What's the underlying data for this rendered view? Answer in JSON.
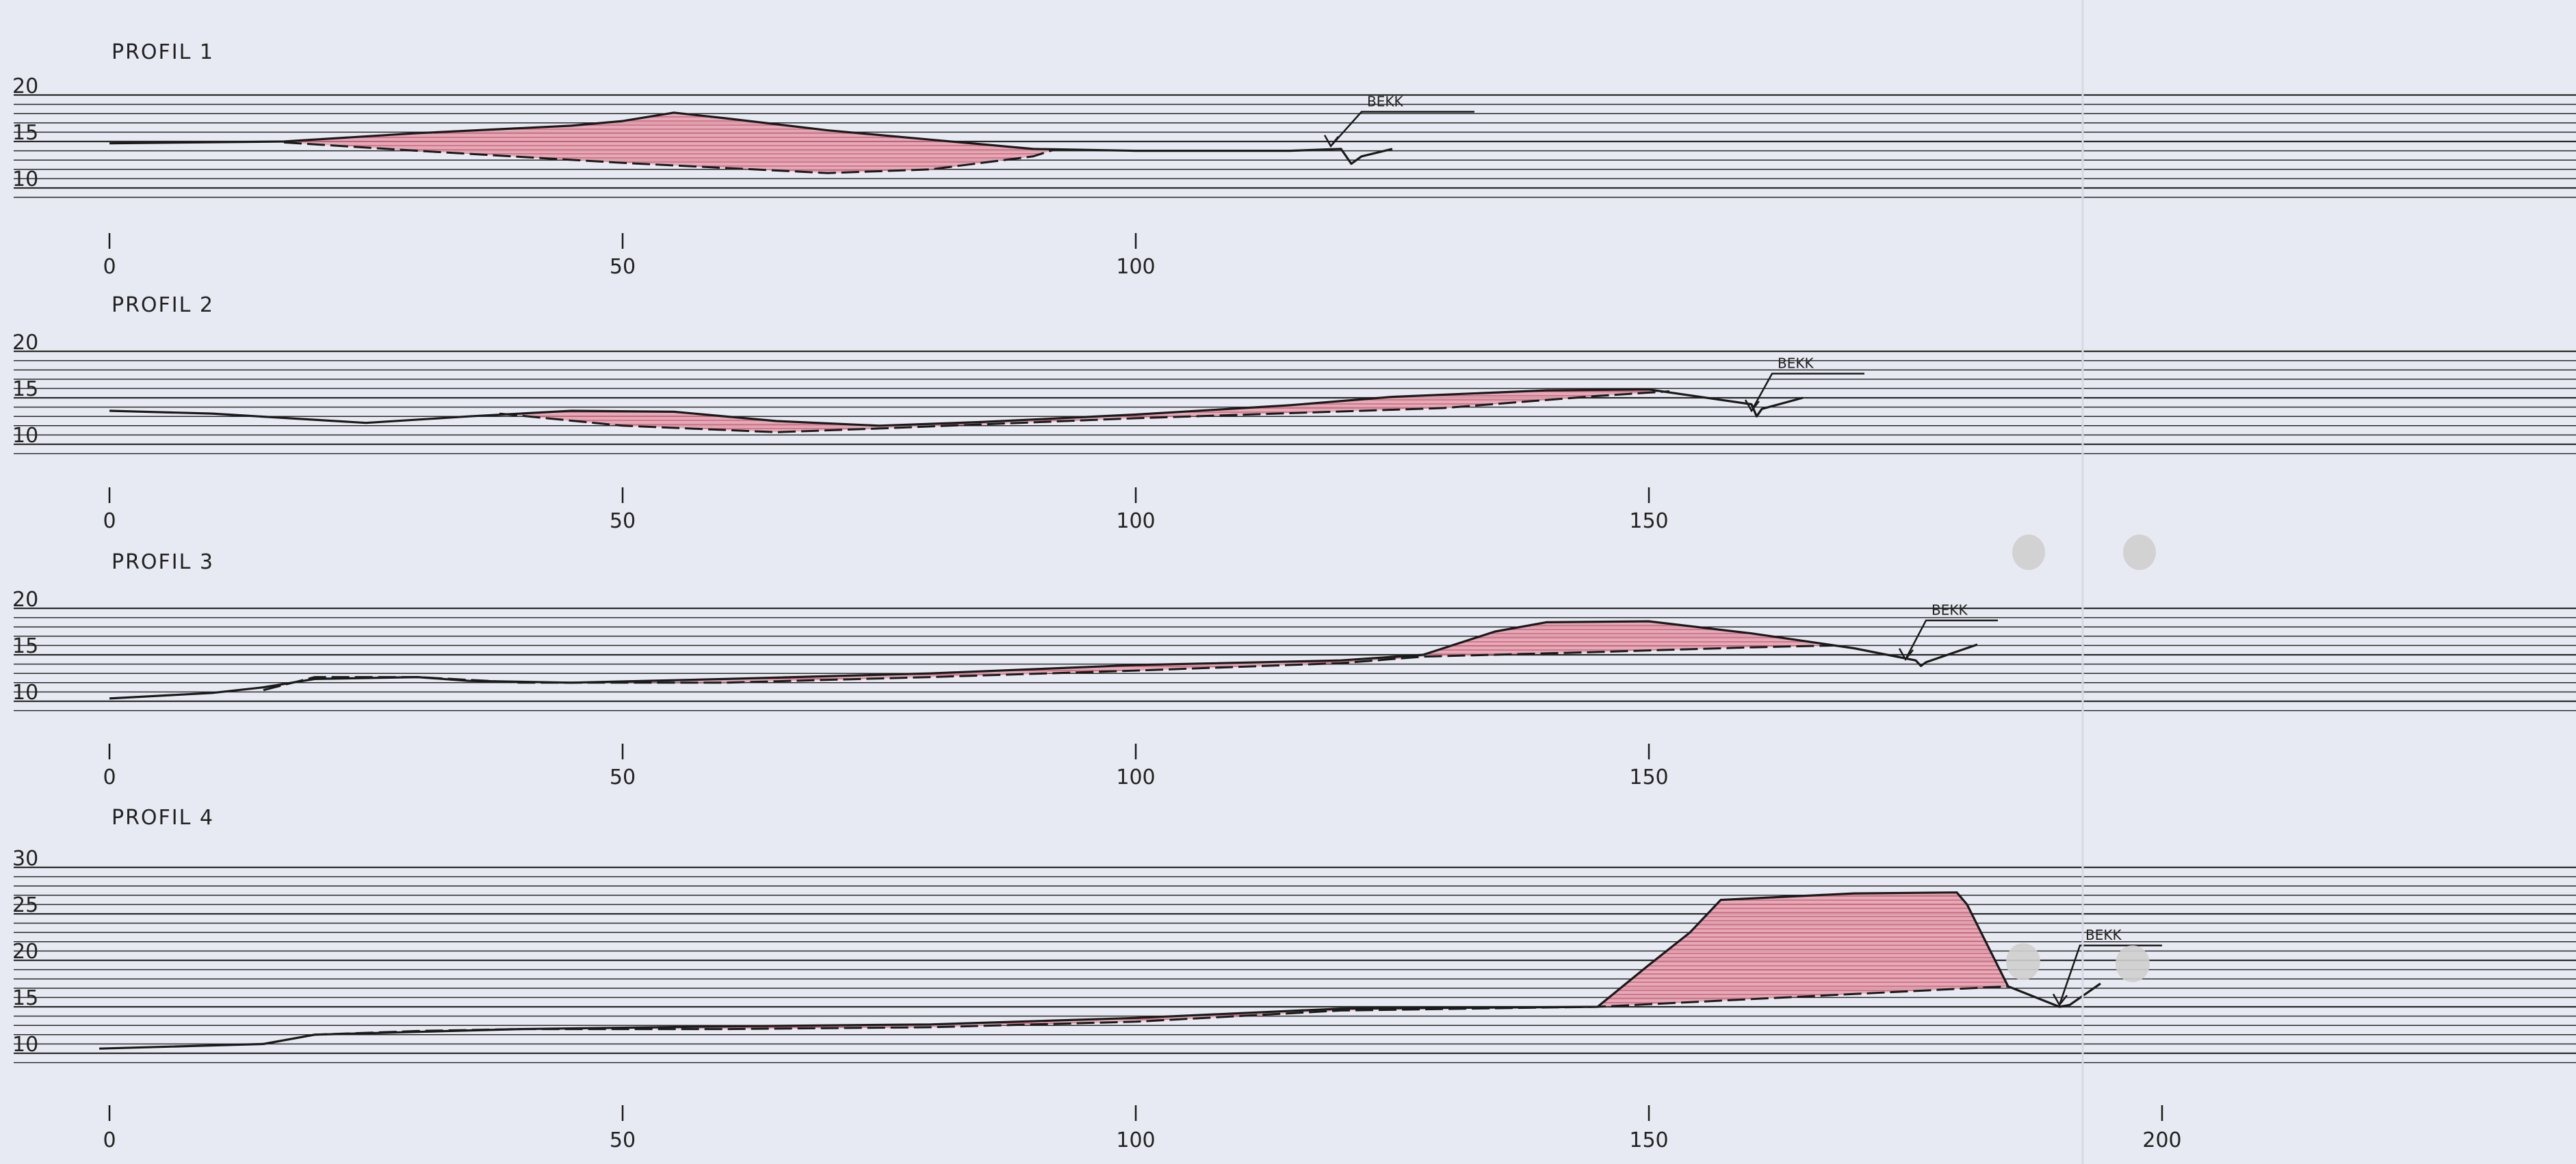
{
  "colors": {
    "paper": "#e8eaf3",
    "grid": "#2a2a2a",
    "terrain": "#1a1a1a",
    "fill_cut": "#e2a3b2",
    "fill_cut_hatch": "#d0506a",
    "fill_blue": "#8fb6e6",
    "fill_blue_hatch": "#4f86d6"
  },
  "chart_data": [
    {
      "type": "area",
      "title": "PROFIL 1",
      "x_ticks": [
        "0",
        "50",
        "100"
      ],
      "x_tick_values": [
        0,
        50,
        100
      ],
      "y_ticks": [
        "20",
        "15",
        "10"
      ],
      "y_tick_values": [
        20,
        15,
        10
      ],
      "ylim": [
        9,
        20
      ],
      "grid": true,
      "annotation": "BEKK",
      "terrain": [
        [
          0,
          14.8
        ],
        [
          17,
          15.0
        ],
        [
          30,
          15.9
        ],
        [
          45,
          16.7
        ],
        [
          50,
          17.2
        ],
        [
          55,
          18.1
        ],
        [
          60,
          17.5
        ],
        [
          70,
          16.2
        ],
        [
          80,
          15.2
        ],
        [
          90,
          14.2
        ],
        [
          100,
          14.0
        ],
        [
          115,
          14.0
        ],
        [
          120,
          14.2
        ],
        [
          121,
          12.6
        ],
        [
          122,
          13.4
        ],
        [
          125,
          14.2
        ]
      ],
      "base": [
        [
          17,
          14.9
        ],
        [
          30,
          14.0
        ],
        [
          50,
          12.7
        ],
        [
          70,
          11.6
        ],
        [
          80,
          12.0
        ],
        [
          90,
          13.4
        ],
        [
          92,
          14.1
        ]
      ],
      "red_regions": [
        [
          17,
          92
        ]
      ],
      "blue_regions": [],
      "bekk_line": [
        [
          119,
          14.5
        ],
        [
          122,
          18.2
        ],
        [
          133,
          18.2
        ]
      ]
    },
    {
      "type": "area",
      "title": "PROFIL 2",
      "x_ticks": [
        "0",
        "50",
        "100",
        "150"
      ],
      "x_tick_values": [
        0,
        50,
        100,
        150
      ],
      "y_ticks": [
        "20",
        "15",
        "10"
      ],
      "y_tick_values": [
        20,
        15,
        10
      ],
      "ylim": [
        9,
        20
      ],
      "grid": true,
      "annotation": "BEKK",
      "terrain": [
        [
          0,
          13.6
        ],
        [
          10,
          13.3
        ],
        [
          25,
          12.3
        ],
        [
          35,
          13.0
        ],
        [
          45,
          13.6
        ],
        [
          55,
          13.5
        ],
        [
          65,
          12.5
        ],
        [
          75,
          12.0
        ],
        [
          85,
          12.4
        ],
        [
          100,
          13.2
        ],
        [
          115,
          14.2
        ],
        [
          125,
          15.1
        ],
        [
          140,
          15.8
        ],
        [
          150,
          15.9
        ],
        [
          160,
          14.3
        ],
        [
          160.5,
          13.0
        ],
        [
          161,
          13.8
        ],
        [
          165,
          15.0
        ]
      ],
      "base": [
        [
          38,
          13.3
        ],
        [
          50,
          12.0
        ],
        [
          65,
          11.3
        ],
        [
          75,
          11.7
        ],
        [
          100,
          12.8
        ],
        [
          130,
          13.9
        ],
        [
          145,
          15.2
        ],
        [
          152,
          15.7
        ]
      ],
      "red_regions": [
        [
          38,
          152
        ]
      ],
      "blue_regions": [],
      "bekk_line": [
        [
          160,
          13.6
        ],
        [
          162,
          17.6
        ],
        [
          171,
          17.6
        ]
      ]
    },
    {
      "type": "area",
      "title": "PROFIL 3",
      "x_ticks": [
        "0",
        "50",
        "100",
        "150"
      ],
      "x_tick_values": [
        0,
        50,
        100,
        150
      ],
      "y_ticks": [
        "20",
        "15",
        "10"
      ],
      "y_tick_values": [
        20,
        15,
        10
      ],
      "ylim": [
        9,
        20
      ],
      "grid": true,
      "annotation": "BEKK",
      "terrain": [
        [
          0,
          10.3
        ],
        [
          10,
          10.9
        ],
        [
          15,
          11.5
        ],
        [
          20,
          12.4
        ],
        [
          30,
          12.6
        ],
        [
          35,
          12.2
        ],
        [
          45,
          12.0
        ],
        [
          60,
          12.4
        ],
        [
          80,
          13.0
        ],
        [
          100,
          13.9
        ],
        [
          120,
          14.4
        ],
        [
          128,
          15.0
        ],
        [
          135,
          17.5
        ],
        [
          140,
          18.5
        ],
        [
          150,
          18.6
        ],
        [
          160,
          17.3
        ],
        [
          170,
          15.7
        ],
        [
          176,
          14.4
        ],
        [
          176.5,
          13.8
        ],
        [
          177,
          14.2
        ],
        [
          182,
          16.1
        ]
      ],
      "base": [
        [
          15,
          11.2
        ],
        [
          20,
          12.6
        ],
        [
          30,
          12.6
        ],
        [
          40,
          12.0
        ],
        [
          60,
          12.0
        ],
        [
          80,
          12.6
        ],
        [
          100,
          13.3
        ],
        [
          120,
          14.1
        ],
        [
          128,
          14.8
        ],
        [
          145,
          15.3
        ],
        [
          160,
          15.8
        ],
        [
          168,
          16.0
        ]
      ],
      "red_regions": [
        [
          40,
          128
        ],
        [
          128,
          168
        ]
      ],
      "blue_regions": [
        [
          15,
          40
        ]
      ],
      "bekk_line": [
        [
          175,
          14.5
        ],
        [
          177,
          18.7
        ],
        [
          184,
          18.7
        ]
      ]
    },
    {
      "type": "area",
      "title": "PROFIL 4",
      "x_ticks": [
        "0",
        "50",
        "100",
        "150",
        "200"
      ],
      "x_tick_values": [
        0,
        50,
        100,
        150,
        200
      ],
      "y_ticks": [
        "30",
        "25",
        "20",
        "15",
        "10"
      ],
      "y_tick_values": [
        30,
        25,
        20,
        15,
        10
      ],
      "ylim": [
        9,
        30
      ],
      "grid": true,
      "annotation": "BEKK",
      "terrain": [
        [
          -1,
          10.5
        ],
        [
          15,
          11.0
        ],
        [
          20,
          12.0
        ],
        [
          30,
          12.3
        ],
        [
          40,
          12.6
        ],
        [
          60,
          12.9
        ],
        [
          80,
          13.1
        ],
        [
          100,
          13.8
        ],
        [
          120,
          14.8
        ],
        [
          145,
          15.0
        ],
        [
          150,
          19.5
        ],
        [
          154,
          23.0
        ],
        [
          157,
          26.5
        ],
        [
          170,
          27.2
        ],
        [
          180,
          27.3
        ],
        [
          181,
          26.0
        ],
        [
          185,
          17.2
        ],
        [
          190,
          15.0
        ],
        [
          191,
          15.2
        ],
        [
          194,
          17.5
        ]
      ],
      "base": [
        [
          15,
          11.0
        ],
        [
          20,
          12.0
        ],
        [
          30,
          12.4
        ],
        [
          40,
          12.6
        ],
        [
          60,
          12.6
        ],
        [
          80,
          12.8
        ],
        [
          100,
          13.4
        ],
        [
          120,
          14.6
        ],
        [
          145,
          15.0
        ],
        [
          165,
          16.1
        ],
        [
          185,
          17.2
        ]
      ],
      "red_regions": [
        [
          40,
          145
        ],
        [
          145,
          185
        ]
      ],
      "blue_regions": [
        [
          15,
          40
        ]
      ],
      "bekk_line": [
        [
          190,
          15.2
        ],
        [
          192,
          21.6
        ],
        [
          200,
          21.6
        ]
      ]
    }
  ]
}
